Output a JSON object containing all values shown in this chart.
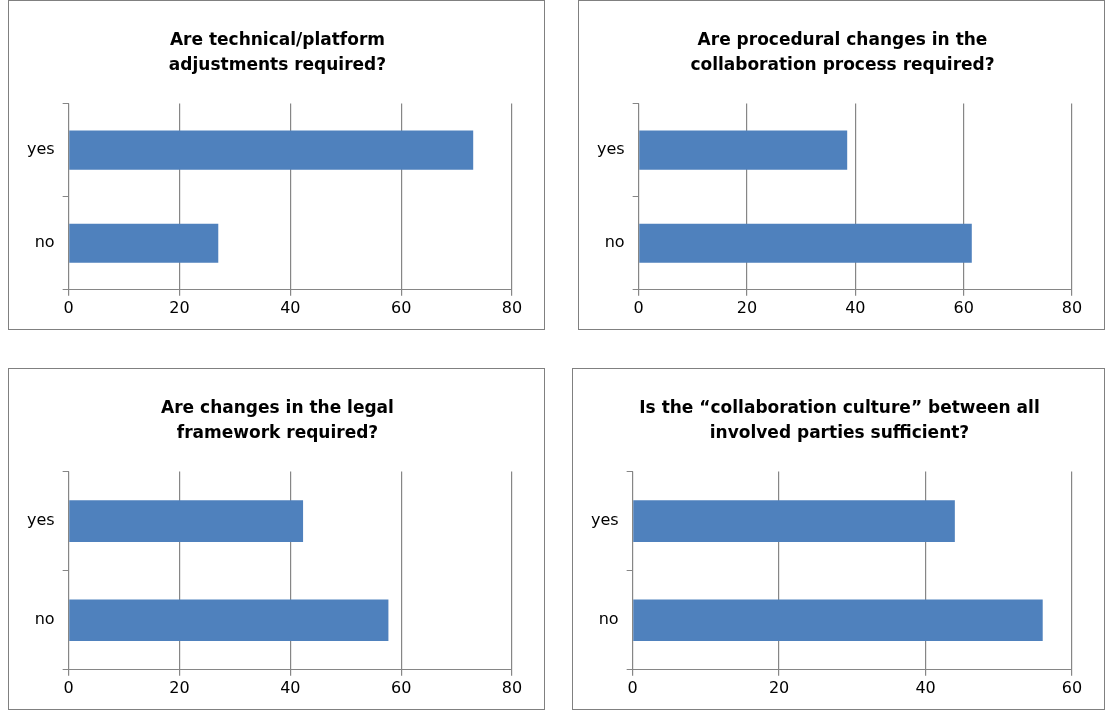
{
  "chart_data": [
    {
      "type": "bar",
      "orientation": "horizontal",
      "title": "Are technical/platform adjustments required?",
      "categories": [
        "yes",
        "no"
      ],
      "values": [
        73,
        27
      ],
      "color": "#4f81bd",
      "xlim": [
        0,
        80
      ],
      "xticks": [
        0,
        20,
        40,
        60,
        80
      ],
      "grid": "x"
    },
    {
      "type": "bar",
      "orientation": "horizontal",
      "title": "Are procedural changes in the collaboration  process required?",
      "categories": [
        "yes",
        "no"
      ],
      "values": [
        38.5,
        61.5
      ],
      "color": "#4f81bd",
      "xlim": [
        0,
        80
      ],
      "xticks": [
        0,
        20,
        40,
        60,
        80
      ],
      "grid": "x"
    },
    {
      "type": "bar",
      "orientation": "horizontal",
      "title": "Are changes in the legal framework required?",
      "categories": [
        "yes",
        "no"
      ],
      "values": [
        42.3,
        57.7
      ],
      "color": "#4f81bd",
      "xlim": [
        0,
        80
      ],
      "xticks": [
        0,
        20,
        40,
        60,
        80
      ],
      "grid": "x"
    },
    {
      "type": "bar",
      "orientation": "horizontal",
      "title": "Is the “collaboration culture” between all involved parties sufficient?",
      "categories": [
        "yes",
        "no"
      ],
      "values": [
        44,
        56
      ],
      "color": "#4f81bd",
      "xlim": [
        0,
        60
      ],
      "xticks": [
        0,
        20,
        40,
        60
      ],
      "grid": "x"
    }
  ]
}
